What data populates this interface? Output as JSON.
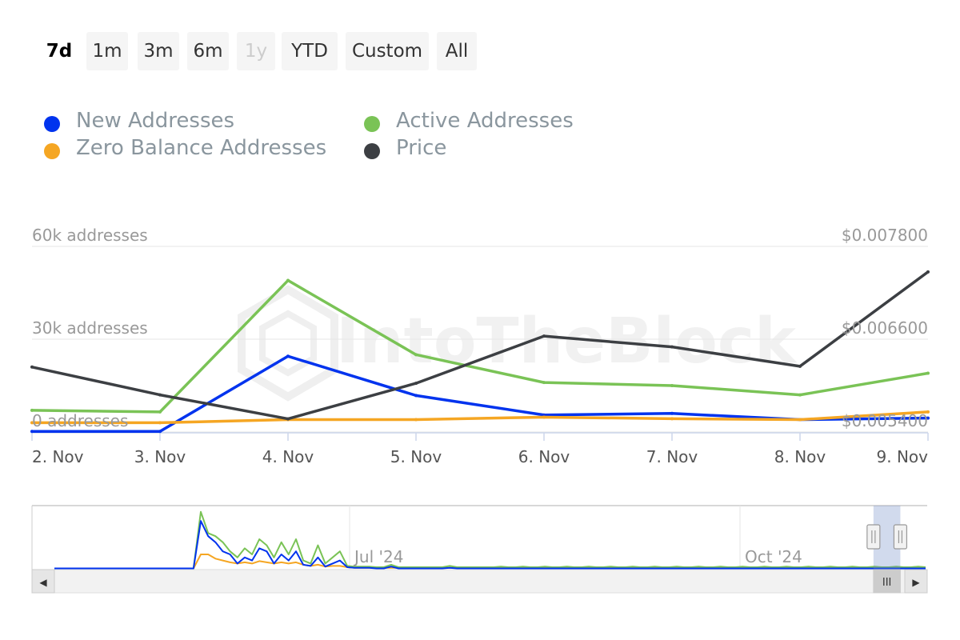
{
  "range_selector": {
    "buttons": [
      {
        "label": "7d",
        "state": "active"
      },
      {
        "label": "1m",
        "state": "normal"
      },
      {
        "label": "3m",
        "state": "normal"
      },
      {
        "label": "6m",
        "state": "normal"
      },
      {
        "label": "1y",
        "state": "disabled"
      },
      {
        "label": "YTD",
        "state": "normal"
      },
      {
        "label": "Custom",
        "state": "normal"
      },
      {
        "label": "All",
        "state": "normal"
      }
    ]
  },
  "legend": {
    "items": [
      {
        "label": "New Addresses",
        "color": "#0033ee"
      },
      {
        "label": "Active Addresses",
        "color": "#7ac356"
      },
      {
        "label": "Zero Balance Addresses",
        "color": "#f5a623"
      },
      {
        "label": "Price",
        "color": "#3c3f43"
      }
    ]
  },
  "watermark": "IntoTheBlock",
  "chart_data": {
    "type": "line",
    "categories": [
      "2. Nov",
      "3. Nov",
      "4. Nov",
      "5. Nov",
      "6. Nov",
      "7. Nov",
      "8. Nov",
      "9. Nov"
    ],
    "y_left": {
      "ticks": [
        0,
        30000,
        60000
      ],
      "tick_labels": [
        "0 addresses",
        "30k addresses",
        "60k addresses"
      ],
      "range": [
        0,
        60000
      ]
    },
    "y_right": {
      "ticks": [
        0.0054,
        0.0066,
        0.0078
      ],
      "tick_labels": [
        "$0.005400",
        "$0.006600",
        "$0.007800"
      ],
      "range": [
        0.0054,
        0.0078
      ]
    },
    "series": [
      {
        "name": "New Addresses",
        "axis": "left",
        "color": "#0033ee",
        "values": [
          200,
          200,
          24500,
          11800,
          5500,
          6000,
          4000,
          4500
        ]
      },
      {
        "name": "Active Addresses",
        "axis": "left",
        "color": "#7ac356",
        "values": [
          7000,
          6500,
          49000,
          25000,
          16000,
          15000,
          12000,
          19000
        ]
      },
      {
        "name": "Zero Balance Addresses",
        "axis": "left",
        "color": "#f5a623",
        "values": [
          3000,
          3000,
          4000,
          4000,
          4800,
          4300,
          4000,
          6500
        ]
      },
      {
        "name": "Price",
        "axis": "right",
        "color": "#3c3f43",
        "values": [
          0.00624,
          0.00588,
          0.00557,
          0.00603,
          0.00664,
          0.0065,
          0.00625,
          0.00747
        ]
      }
    ]
  },
  "navigator": {
    "x_labels": [
      "Jul '24",
      "Oct '24"
    ],
    "series": [
      {
        "name": "New Addresses",
        "color": "#0033ee",
        "values": [
          0.02,
          0.02,
          0.02,
          0.02,
          0.02,
          0.02,
          0.02,
          0.02,
          0.02,
          0.02,
          0.02,
          0.02,
          0.02,
          0.02,
          0.02,
          0.02,
          0.02,
          0.02,
          0.02,
          0.02,
          0.8,
          0.55,
          0.45,
          0.3,
          0.25,
          0.1,
          0.2,
          0.15,
          0.35,
          0.3,
          0.1,
          0.25,
          0.15,
          0.3,
          0.08,
          0.06,
          0.2,
          0.05,
          0.1,
          0.15,
          0.04,
          0.03,
          0.03,
          0.03,
          0.02,
          0.02,
          0.05,
          0.02,
          0.02,
          0.02,
          0.02,
          0.02,
          0.02,
          0.02,
          0.03,
          0.02,
          0.02,
          0.02,
          0.02,
          0.02,
          0.02,
          0.02,
          0.02,
          0.02,
          0.02,
          0.02,
          0.02,
          0.02,
          0.02,
          0.02,
          0.02,
          0.02,
          0.02,
          0.02,
          0.02,
          0.02,
          0.02,
          0.02,
          0.02,
          0.02,
          0.02,
          0.02,
          0.02,
          0.02,
          0.02,
          0.02,
          0.02,
          0.02,
          0.02,
          0.02,
          0.02,
          0.02,
          0.02,
          0.02,
          0.02,
          0.02,
          0.02,
          0.02,
          0.02,
          0.02,
          0.02,
          0.02,
          0.02,
          0.02,
          0.02,
          0.02,
          0.02,
          0.02,
          0.02,
          0.02,
          0.02,
          0.02,
          0.02,
          0.02,
          0.02,
          0.02,
          0.02,
          0.02,
          0.02,
          0.02
        ]
      },
      {
        "name": "Active Addresses",
        "color": "#7ac356",
        "values": [
          0.02,
          0.02,
          0.02,
          0.02,
          0.02,
          0.02,
          0.02,
          0.02,
          0.02,
          0.02,
          0.02,
          0.02,
          0.02,
          0.02,
          0.02,
          0.02,
          0.02,
          0.02,
          0.02,
          0.02,
          0.95,
          0.6,
          0.55,
          0.45,
          0.3,
          0.2,
          0.35,
          0.25,
          0.5,
          0.4,
          0.2,
          0.45,
          0.25,
          0.5,
          0.15,
          0.1,
          0.4,
          0.1,
          0.2,
          0.3,
          0.06,
          0.05,
          0.05,
          0.05,
          0.04,
          0.04,
          0.08,
          0.04,
          0.04,
          0.04,
          0.04,
          0.04,
          0.04,
          0.04,
          0.06,
          0.04,
          0.04,
          0.04,
          0.04,
          0.04,
          0.04,
          0.05,
          0.04,
          0.04,
          0.05,
          0.04,
          0.04,
          0.05,
          0.04,
          0.04,
          0.05,
          0.04,
          0.04,
          0.05,
          0.04,
          0.04,
          0.05,
          0.04,
          0.04,
          0.05,
          0.04,
          0.04,
          0.05,
          0.04,
          0.04,
          0.05,
          0.04,
          0.04,
          0.05,
          0.04,
          0.04,
          0.05,
          0.04,
          0.04,
          0.05,
          0.04,
          0.04,
          0.05,
          0.04,
          0.04,
          0.05,
          0.04,
          0.04,
          0.05,
          0.04,
          0.04,
          0.05,
          0.04,
          0.04,
          0.05,
          0.04,
          0.04,
          0.05,
          0.04,
          0.04,
          0.05,
          0.04,
          0.04,
          0.05,
          0.04
        ]
      },
      {
        "name": "Zero Balance Addresses",
        "color": "#f5a623",
        "values": [
          0.02,
          0.02,
          0.02,
          0.02,
          0.02,
          0.02,
          0.02,
          0.02,
          0.02,
          0.02,
          0.02,
          0.02,
          0.02,
          0.02,
          0.02,
          0.02,
          0.02,
          0.02,
          0.02,
          0.02,
          0.25,
          0.25,
          0.18,
          0.15,
          0.12,
          0.1,
          0.12,
          0.1,
          0.14,
          0.12,
          0.1,
          0.12,
          0.1,
          0.12,
          0.08,
          0.06,
          0.08,
          0.05,
          0.06,
          0.06,
          0.04,
          0.03,
          0.03,
          0.03,
          0.03,
          0.03,
          0.03,
          0.03,
          0.03,
          0.03,
          0.03,
          0.03,
          0.03,
          0.03,
          0.03,
          0.03,
          0.03,
          0.03,
          0.03,
          0.03,
          0.03,
          0.03,
          0.03,
          0.03,
          0.03,
          0.03,
          0.03,
          0.03,
          0.03,
          0.03,
          0.03,
          0.03,
          0.03,
          0.03,
          0.03,
          0.03,
          0.03,
          0.03,
          0.03,
          0.03,
          0.03,
          0.03,
          0.03,
          0.03,
          0.03,
          0.03,
          0.03,
          0.03,
          0.03,
          0.03,
          0.03,
          0.03,
          0.03,
          0.03,
          0.03,
          0.03,
          0.03,
          0.03,
          0.03,
          0.03,
          0.03,
          0.03,
          0.03,
          0.03,
          0.03,
          0.03,
          0.03,
          0.03,
          0.03,
          0.03,
          0.03,
          0.03,
          0.03,
          0.03,
          0.03,
          0.03,
          0.03,
          0.03,
          0.03,
          0.03
        ]
      }
    ],
    "selection": [
      0.94,
      0.97
    ]
  },
  "scrollbar": {
    "left_arrow": "◀",
    "right_arrow": "▶",
    "thumb_grip": "III"
  }
}
